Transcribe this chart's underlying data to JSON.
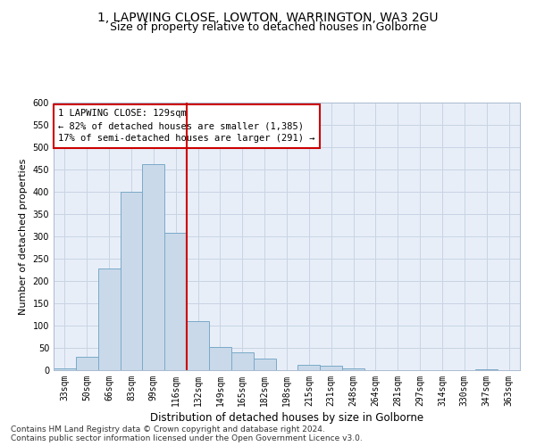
{
  "title1": "1, LAPWING CLOSE, LOWTON, WARRINGTON, WA3 2GU",
  "title2": "Size of property relative to detached houses in Golborne",
  "xlabel": "Distribution of detached houses by size in Golborne",
  "ylabel": "Number of detached properties",
  "categories": [
    "33sqm",
    "50sqm",
    "66sqm",
    "83sqm",
    "99sqm",
    "116sqm",
    "132sqm",
    "149sqm",
    "165sqm",
    "182sqm",
    "198sqm",
    "215sqm",
    "231sqm",
    "248sqm",
    "264sqm",
    "281sqm",
    "297sqm",
    "314sqm",
    "330sqm",
    "347sqm",
    "363sqm"
  ],
  "values": [
    5,
    30,
    228,
    400,
    463,
    308,
    110,
    52,
    40,
    26,
    0,
    13,
    11,
    5,
    0,
    0,
    0,
    0,
    0,
    3,
    0
  ],
  "bar_color": "#c9d9ea",
  "bar_edge_color": "#7aaac8",
  "vline_color": "#cc0000",
  "annotation_text": "1 LAPWING CLOSE: 129sqm\n← 82% of detached houses are smaller (1,385)\n17% of semi-detached houses are larger (291) →",
  "annotation_box_color": "#ffffff",
  "annotation_box_edge": "#cc0000",
  "ylim": [
    0,
    600
  ],
  "yticks": [
    0,
    50,
    100,
    150,
    200,
    250,
    300,
    350,
    400,
    450,
    500,
    550,
    600
  ],
  "grid_color": "#c8d4e4",
  "bg_color": "#e8eef8",
  "footer1": "Contains HM Land Registry data © Crown copyright and database right 2024.",
  "footer2": "Contains public sector information licensed under the Open Government Licence v3.0.",
  "title1_fontsize": 10,
  "title2_fontsize": 9,
  "xlabel_fontsize": 8.5,
  "ylabel_fontsize": 8,
  "tick_fontsize": 7,
  "footer_fontsize": 6.5,
  "annot_fontsize": 7.5
}
